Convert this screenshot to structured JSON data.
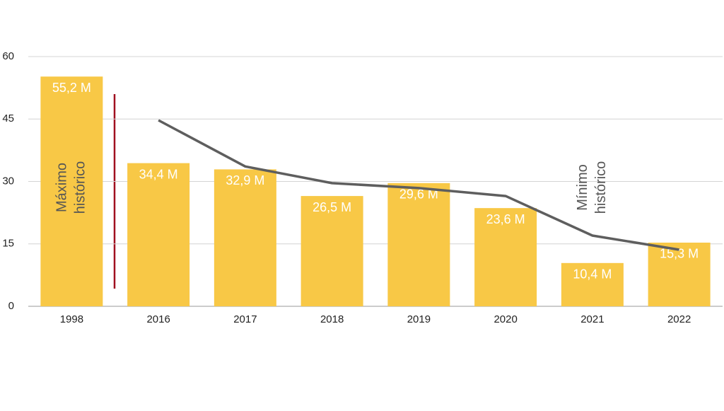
{
  "chart_data": {
    "type": "bar",
    "categories": [
      "1998",
      "2016",
      "2017",
      "2018",
      "2019",
      "2020",
      "2021",
      "2022"
    ],
    "series": [
      {
        "type": "bar",
        "color": "#f8c846",
        "values": [
          55.2,
          34.4,
          32.9,
          26.5,
          29.6,
          23.6,
          10.4,
          15.3
        ],
        "value_labels": [
          "55,2 M",
          "34,4 M",
          "32,9 M",
          "26,5 M",
          "29,6 M",
          "23,6 M",
          "10,4 M",
          "15,3 M"
        ]
      },
      {
        "type": "line",
        "color": "#5e5e5e",
        "values": [
          null,
          44.7,
          33.6,
          29.6,
          28.4,
          26.5,
          17.0,
          13.6
        ]
      }
    ],
    "annotations": [
      {
        "text": "Máximo histórico",
        "category": 0
      },
      {
        "text": "Mínimo histórico",
        "category": 6
      }
    ],
    "ylim": [
      0,
      60
    ],
    "yticks": [
      0,
      15,
      30,
      45,
      60
    ],
    "grid": true
  }
}
